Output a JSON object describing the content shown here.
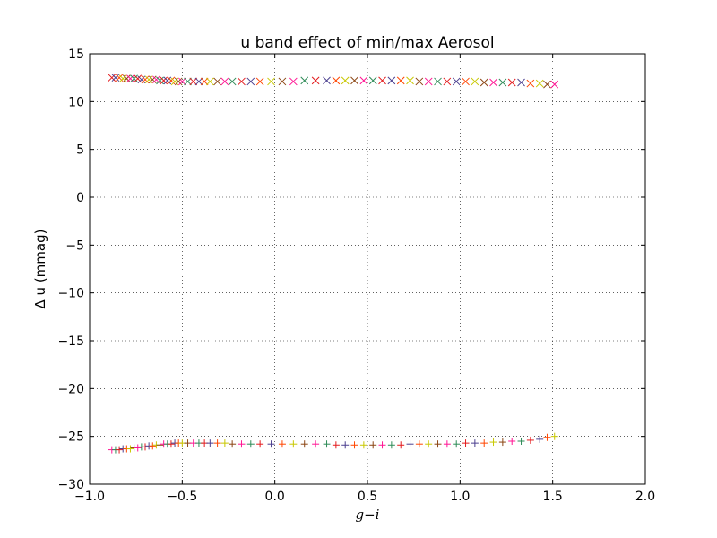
{
  "chart_data": {
    "type": "scatter",
    "title": "u band effect of min/max Aerosol",
    "xlabel": "g−i",
    "ylabel": "Δ u (mmag)",
    "xlim": [
      -1.0,
      2.0
    ],
    "ylim": [
      -30,
      15
    ],
    "xticks": [
      -1.0,
      -0.5,
      0.0,
      0.5,
      1.0,
      1.5,
      2.0
    ],
    "xtick_labels": [
      "−1.0",
      "−0.5",
      "0.0",
      "0.5",
      "1.0",
      "1.5",
      "2.0"
    ],
    "yticks": [
      15,
      10,
      5,
      0,
      -5,
      -10,
      -15,
      -20,
      -25,
      -30
    ],
    "ytick_labels": [
      "15",
      "10",
      "5",
      "0",
      "−5",
      "−10",
      "−15",
      "−20",
      "−25",
      "−30"
    ],
    "grid": true,
    "colors": [
      "#e31a1c",
      "#ff1493",
      "#c8c800",
      "#4b3f8f",
      "#2e8b57",
      "#8b4513",
      "#ff4500"
    ],
    "series": [
      {
        "marker": "x",
        "x": [
          -0.88,
          -0.86,
          -0.84,
          -0.82,
          -0.8,
          -0.78,
          -0.76,
          -0.74,
          -0.72,
          -0.7,
          -0.68,
          -0.66,
          -0.64,
          -0.62,
          -0.6,
          -0.58,
          -0.56,
          -0.54,
          -0.52,
          -0.5,
          -0.47,
          -0.44,
          -0.41,
          -0.38,
          -0.35,
          -0.31,
          -0.27,
          -0.23,
          -0.18,
          -0.13,
          -0.08,
          -0.02,
          0.04,
          0.1,
          0.16,
          0.22,
          0.28,
          0.33,
          0.38,
          0.43,
          0.48,
          0.53,
          0.58,
          0.63,
          0.68,
          0.73,
          0.78,
          0.83,
          0.88,
          0.93,
          0.98,
          1.03,
          1.08,
          1.13,
          1.18,
          1.23,
          1.28,
          1.33,
          1.38,
          1.43,
          1.47,
          1.51
        ],
        "y": [
          12.5,
          12.5,
          12.5,
          12.4,
          12.4,
          12.4,
          12.4,
          12.4,
          12.3,
          12.3,
          12.3,
          12.3,
          12.3,
          12.2,
          12.2,
          12.2,
          12.2,
          12.1,
          12.1,
          12.1,
          12.1,
          12.1,
          12.1,
          12.1,
          12.1,
          12.1,
          12.1,
          12.1,
          12.1,
          12.1,
          12.1,
          12.1,
          12.1,
          12.1,
          12.2,
          12.2,
          12.2,
          12.2,
          12.2,
          12.2,
          12.2,
          12.2,
          12.2,
          12.2,
          12.2,
          12.2,
          12.1,
          12.1,
          12.1,
          12.1,
          12.1,
          12.1,
          12.1,
          12.0,
          12.0,
          12.0,
          12.0,
          12.0,
          11.9,
          11.9,
          11.8,
          11.8
        ]
      },
      {
        "marker": "+",
        "x": [
          -0.88,
          -0.86,
          -0.84,
          -0.82,
          -0.8,
          -0.78,
          -0.76,
          -0.74,
          -0.72,
          -0.7,
          -0.68,
          -0.66,
          -0.64,
          -0.62,
          -0.6,
          -0.58,
          -0.56,
          -0.54,
          -0.52,
          -0.5,
          -0.47,
          -0.44,
          -0.41,
          -0.38,
          -0.35,
          -0.31,
          -0.27,
          -0.23,
          -0.18,
          -0.13,
          -0.08,
          -0.02,
          0.04,
          0.1,
          0.16,
          0.22,
          0.28,
          0.33,
          0.38,
          0.43,
          0.48,
          0.53,
          0.58,
          0.63,
          0.68,
          0.73,
          0.78,
          0.83,
          0.88,
          0.93,
          0.98,
          1.03,
          1.08,
          1.13,
          1.18,
          1.23,
          1.28,
          1.33,
          1.38,
          1.43,
          1.47,
          1.51
        ],
        "y": [
          -26.4,
          -26.4,
          -26.4,
          -26.3,
          -26.3,
          -26.3,
          -26.2,
          -26.2,
          -26.1,
          -26.1,
          -26.0,
          -26.0,
          -25.9,
          -25.9,
          -25.8,
          -25.8,
          -25.8,
          -25.7,
          -25.7,
          -25.7,
          -25.7,
          -25.7,
          -25.7,
          -25.7,
          -25.7,
          -25.7,
          -25.7,
          -25.8,
          -25.8,
          -25.8,
          -25.8,
          -25.8,
          -25.8,
          -25.8,
          -25.8,
          -25.8,
          -25.8,
          -25.9,
          -25.9,
          -25.9,
          -25.9,
          -25.9,
          -25.9,
          -25.9,
          -25.9,
          -25.8,
          -25.8,
          -25.8,
          -25.8,
          -25.8,
          -25.8,
          -25.7,
          -25.7,
          -25.7,
          -25.6,
          -25.6,
          -25.5,
          -25.5,
          -25.4,
          -25.3,
          -25.1,
          -25.0
        ]
      }
    ]
  }
}
